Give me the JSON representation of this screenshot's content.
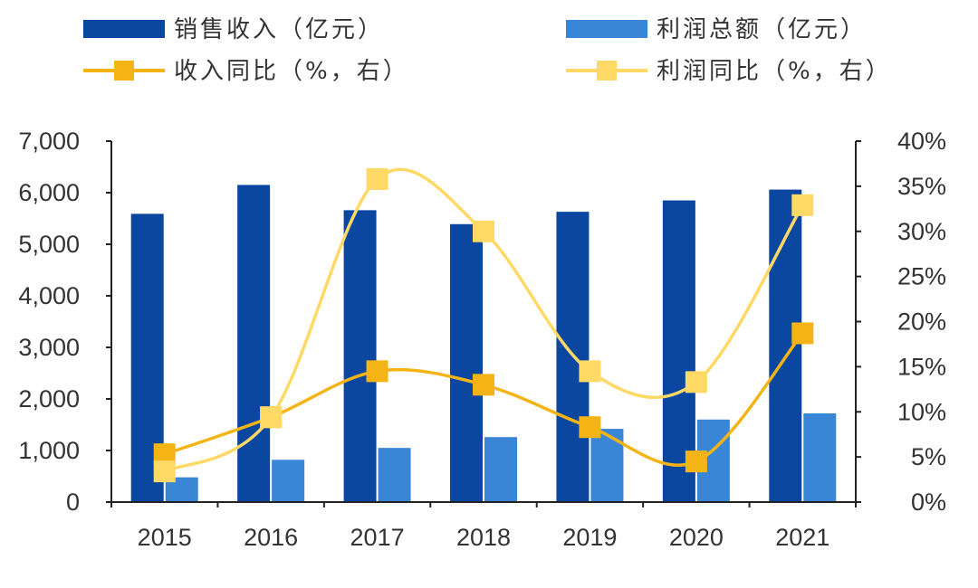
{
  "chart_data": {
    "type": "bar",
    "categories": [
      "2015",
      "2016",
      "2017",
      "2018",
      "2019",
      "2020",
      "2021"
    ],
    "series": [
      {
        "name": "销售收入（亿元）",
        "type": "bar",
        "axis": "left",
        "color": "#0b47a1",
        "values": [
          5590,
          6150,
          5660,
          5390,
          5630,
          5850,
          6060
        ]
      },
      {
        "name": "利润总额（亿元）",
        "type": "bar",
        "axis": "left",
        "color": "#3a86d6",
        "values": [
          480,
          820,
          1050,
          1260,
          1420,
          1600,
          1720
        ]
      },
      {
        "name": "收入同比（%，右）",
        "type": "line",
        "axis": "right",
        "color": "#f5b416",
        "values": [
          5.3,
          9.4,
          14.5,
          13.0,
          8.3,
          4.5,
          18.7
        ]
      },
      {
        "name": "利润同比（%，右）",
        "type": "line",
        "axis": "right",
        "color": "#ffd966",
        "values": [
          3.4,
          9.4,
          35.8,
          30.0,
          14.5,
          13.3,
          32.9
        ]
      }
    ],
    "y_left": {
      "ylim": [
        0,
        7000
      ],
      "ticks": [
        "0",
        "1,000",
        "2,000",
        "3,000",
        "4,000",
        "5,000",
        "6,000",
        "7,000"
      ]
    },
    "y_right": {
      "ylim": [
        0,
        40
      ],
      "ticks": [
        "0%",
        "5%",
        "10%",
        "15%",
        "20%",
        "25%",
        "30%",
        "35%",
        "40%"
      ]
    },
    "title": "",
    "xlabel": "",
    "ylabel": "",
    "grid": false,
    "legend_position": "top"
  }
}
